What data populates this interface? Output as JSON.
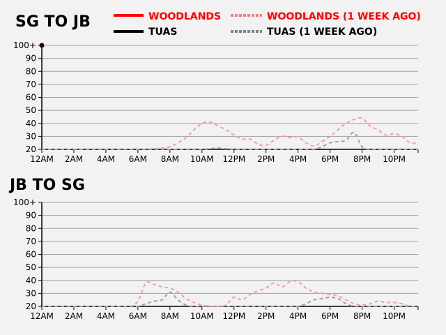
{
  "legend": {
    "items": [
      {
        "label": "WOODLANDS",
        "color": "#ff0000",
        "text_color": "#ff0000",
        "style": "solid"
      },
      {
        "label": "WOODLANDS (1 WEEK AGO)",
        "color": "#f08080",
        "text_color": "#ff0000",
        "style": "dashed"
      },
      {
        "label": "TUAS",
        "color": "#000000",
        "text_color": "#000000",
        "style": "solid"
      },
      {
        "label": "TUAS (1 WEEK AGO)",
        "color": "#808080",
        "text_color": "#000000",
        "style": "dashed"
      }
    ]
  },
  "chart_data": [
    {
      "type": "line",
      "title": "SG TO JB",
      "x_tick_labels": [
        "12AM",
        "2AM",
        "4AM",
        "6AM",
        "8AM",
        "10AM",
        "12PM",
        "2PM",
        "4PM",
        "6PM",
        "8PM",
        "10PM"
      ],
      "y_tick_labels": [
        "20",
        "30",
        "40",
        "50",
        "60",
        "70",
        "80",
        "90",
        "100+"
      ],
      "ylim": [
        20,
        100
      ],
      "xlim_hours": [
        0,
        23.5
      ],
      "grid": "horizontal",
      "x_hours": [
        0,
        0.5,
        1,
        1.5,
        2,
        2.5,
        3,
        3.5,
        4,
        4.5,
        5,
        5.5,
        6,
        6.5,
        7,
        7.5,
        8,
        8.5,
        9,
        9.5,
        10,
        10.5,
        11,
        11.5,
        12,
        12.5,
        13,
        13.5,
        14,
        14.5,
        15,
        15.5,
        16,
        16.5,
        17,
        17.5,
        18,
        18.5,
        19,
        19.5,
        20,
        20.5,
        21,
        21.5,
        22,
        22.5,
        23,
        23.5
      ],
      "series": [
        {
          "name": "WOODLANDS",
          "x_hours": [
            0
          ],
          "values": [
            100
          ]
        },
        {
          "name": "TUAS",
          "x_hours": [],
          "values": []
        },
        {
          "name": "WOODLANDS (1 WEEK AGO)",
          "values": [
            20,
            20,
            20,
            20,
            20,
            20,
            20,
            20,
            20,
            20,
            20,
            20,
            20,
            20,
            20.5,
            21,
            22,
            25,
            29,
            35,
            40,
            41,
            38,
            35,
            31,
            28,
            28,
            24,
            23,
            27,
            30,
            29,
            29.5,
            25,
            22.5,
            26,
            30,
            35,
            40,
            43,
            44,
            38,
            35,
            31,
            32,
            30,
            25,
            25
          ]
        },
        {
          "name": "TUAS (1 WEEK AGO)",
          "values": [
            20,
            20,
            20,
            20,
            20,
            20,
            20,
            20,
            20,
            20,
            20,
            20,
            20,
            20,
            20,
            20,
            20,
            20,
            20,
            20,
            20,
            20.5,
            21,
            20.5,
            20,
            20,
            20,
            20,
            20,
            20,
            20,
            20,
            20,
            20,
            20,
            22,
            25,
            26,
            27,
            33,
            22,
            20,
            20,
            20,
            20,
            20,
            20,
            20
          ]
        }
      ]
    },
    {
      "type": "line",
      "title": "JB TO SG",
      "x_tick_labels": [
        "12AM",
        "2AM",
        "4AM",
        "6AM",
        "8AM",
        "10AM",
        "12PM",
        "2PM",
        "4PM",
        "6PM",
        "8PM",
        "10PM"
      ],
      "y_tick_labels": [
        "20",
        "30",
        "40",
        "50",
        "60",
        "70",
        "80",
        "90",
        "100+"
      ],
      "ylim": [
        20,
        100
      ],
      "xlim_hours": [
        0,
        23.5
      ],
      "grid": "horizontal",
      "series": [
        {
          "name": "WOODLANDS",
          "x_hours": [],
          "values": []
        },
        {
          "name": "TUAS",
          "x_hours": [],
          "values": []
        },
        {
          "name": "WOODLANDS (1 WEEK AGO)",
          "values": [
            20,
            20,
            20,
            20,
            20,
            20,
            20,
            20,
            20,
            20,
            20,
            20,
            24,
            38,
            37,
            35,
            34,
            31,
            26,
            23,
            21,
            20,
            20,
            21,
            27,
            25,
            29,
            32,
            34,
            38,
            35,
            39,
            39,
            34,
            31,
            30,
            29,
            28,
            25,
            22,
            21,
            22,
            24,
            23,
            23,
            22,
            20,
            20
          ]
        },
        {
          "name": "TUAS (1 WEEK AGO)",
          "values": [
            20,
            20,
            20,
            20,
            20,
            20,
            20,
            20,
            20,
            20,
            20,
            20,
            20,
            22,
            24,
            25,
            31,
            25,
            21,
            20,
            20,
            20,
            20,
            20,
            20,
            20,
            20,
            20,
            20,
            20,
            20,
            20,
            20,
            22,
            25,
            26,
            27,
            26,
            22,
            20,
            20,
            20,
            20,
            20,
            20,
            20,
            20,
            20
          ]
        }
      ]
    }
  ]
}
